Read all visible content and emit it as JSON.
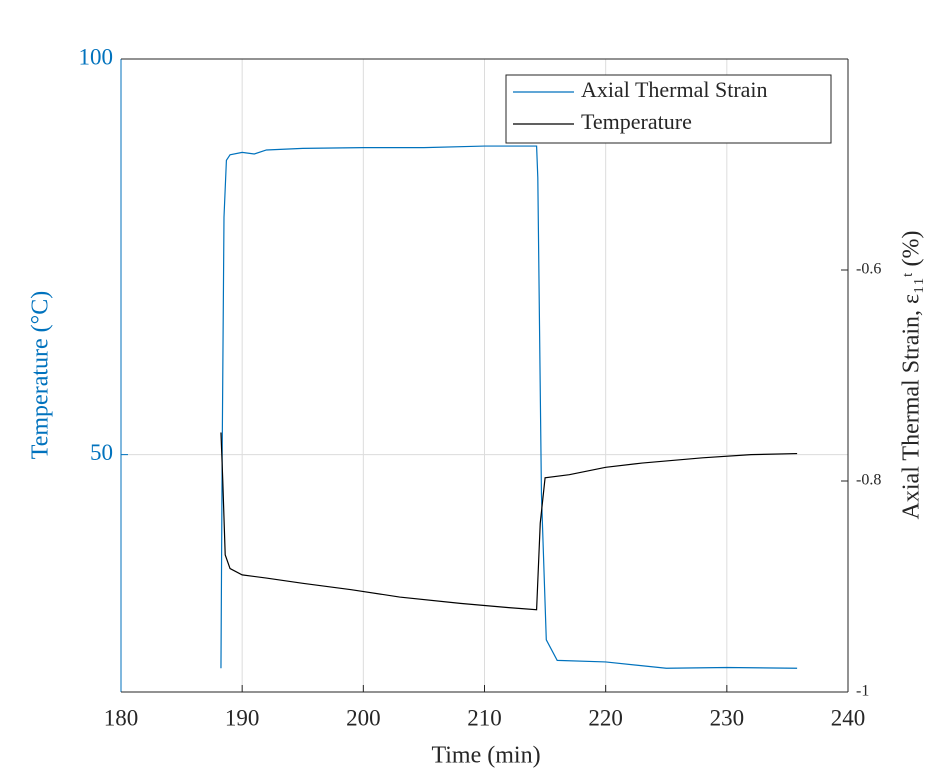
{
  "chart_data": {
    "type": "line",
    "xlabel": "Time (min)",
    "ylabel": "Temperature (°C)",
    "y2label": "Axial Thermal Strain, ε₁₁ᵗ (%)",
    "xlim": [
      180,
      240
    ],
    "xticks": [
      180,
      190,
      200,
      210,
      220,
      230,
      240
    ],
    "ylim": [
      20,
      100
    ],
    "yticks": [
      50,
      100
    ],
    "y2lim": [
      -1,
      -0.4
    ],
    "y2ticks": [
      -1,
      -0.8,
      -0.6
    ],
    "grid": true,
    "legend": "upper right",
    "series": [
      {
        "name": "Axial Thermal Strain",
        "color": "#0072bd",
        "axis": "y",
        "x": [
          188.25,
          188.35,
          188.5,
          188.7,
          189,
          190,
          191,
          192,
          195,
          200,
          205,
          210,
          214.3,
          214.4,
          214.7,
          215.1,
          216,
          220,
          225,
          230,
          235.8
        ],
        "values": [
          23.0,
          50,
          80,
          87.2,
          87.9,
          88.2,
          88.0,
          88.5,
          88.7,
          88.8,
          88.8,
          89.0,
          89.0,
          85,
          45,
          26.6,
          24.0,
          23.8,
          23.0,
          23.1,
          23.0
        ]
      },
      {
        "name": "Temperature",
        "color": "#000000",
        "axis": "y2",
        "x": [
          188.25,
          188.4,
          188.6,
          189,
          190,
          192,
          195,
          199,
          203,
          208,
          212,
          214.3,
          214.6,
          215,
          217,
          220,
          223,
          228,
          232,
          235.8
        ],
        "values": [
          -0.754,
          -0.8,
          -0.87,
          -0.883,
          -0.889,
          -0.892,
          -0.897,
          -0.903,
          -0.91,
          -0.916,
          -0.92,
          -0.922,
          -0.84,
          -0.797,
          -0.794,
          -0.787,
          -0.783,
          -0.778,
          -0.775,
          -0.774
        ]
      }
    ]
  }
}
